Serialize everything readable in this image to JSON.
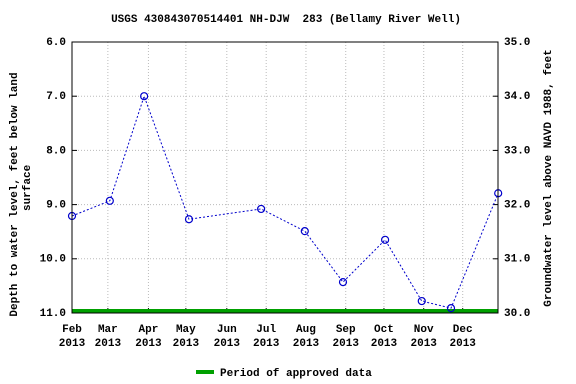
{
  "chart_data": {
    "type": "line",
    "title": "USGS 430843070514401 NH-DJW  283 (Bellamy River Well)",
    "ylabel": [
      "Depth to water level, feet below land",
      "surface"
    ],
    "y2label": "Groundwater level above NAVD 1988, feet",
    "x": [
      0,
      0.97,
      1.85,
      3.0,
      4.85,
      5.97,
      6.95,
      8.03,
      8.97,
      9.72,
      10.93
    ],
    "series": [
      {
        "name": "Depth to water level",
        "color": "#0000cc",
        "values": [
          9.21,
          8.93,
          7.0,
          9.27,
          9.08,
          9.49,
          10.43,
          9.65,
          10.78,
          10.91,
          8.79
        ]
      }
    ],
    "xlim": [
      0,
      10.925
    ],
    "xticks": [
      {
        "value": 0,
        "label": [
          "Feb",
          "2013"
        ]
      },
      {
        "value": 0.92,
        "label": [
          "Mar",
          "2013"
        ]
      },
      {
        "value": 1.96,
        "label": [
          "Apr",
          "2013"
        ]
      },
      {
        "value": 2.92,
        "label": [
          "May",
          "2013"
        ]
      },
      {
        "value": 3.97,
        "label": [
          "Jun",
          "2013"
        ]
      },
      {
        "value": 4.98,
        "label": [
          "Jul",
          "2013"
        ]
      },
      {
        "value": 6.0,
        "label": [
          "Aug",
          "2013"
        ]
      },
      {
        "value": 7.02,
        "label": [
          "Sep",
          "2013"
        ]
      },
      {
        "value": 8.0,
        "label": [
          "Oct",
          "2013"
        ]
      },
      {
        "value": 9.02,
        "label": [
          "Nov",
          "2013"
        ]
      },
      {
        "value": 10.02,
        "label": [
          "Dec",
          "2013"
        ]
      }
    ],
    "ylim": [
      6,
      11
    ],
    "invert_y": true,
    "yticks": [
      {
        "value": 6,
        "label": "6.0"
      },
      {
        "value": 7,
        "label": "7.0"
      },
      {
        "value": 8,
        "label": "8.0"
      },
      {
        "value": 9,
        "label": "9.0"
      },
      {
        "value": 10,
        "label": "10.0"
      },
      {
        "value": 11,
        "label": "11.0"
      }
    ],
    "y2lim": [
      30,
      35
    ],
    "y2ticks": [
      {
        "value": 30,
        "label": "30.0"
      },
      {
        "value": 31,
        "label": "31.0"
      },
      {
        "value": 32,
        "label": "32.0"
      },
      {
        "value": 33,
        "label": "33.0"
      },
      {
        "value": 34,
        "label": "34.0"
      },
      {
        "value": 35,
        "label": "35.0"
      }
    ],
    "grid": true,
    "approved_period": {
      "name": "Period of approved data",
      "color": "#00a000",
      "x": [
        0,
        10.925
      ]
    }
  }
}
